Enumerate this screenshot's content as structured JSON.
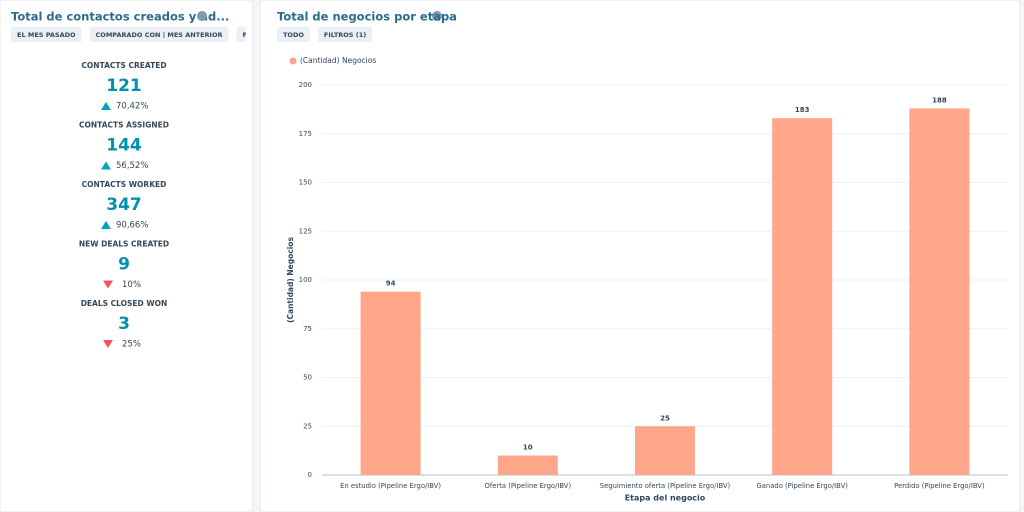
{
  "kpi_panel": {
    "title": "Total de contactos creados y ad...",
    "filters": [
      "EL MES PASADO",
      "COMPARADO CON | MES ANTERIOR",
      "FILT"
    ],
    "metrics": [
      {
        "label": "CONTACTS CREATED",
        "value": 121,
        "change": "70,42%",
        "direction": "up"
      },
      {
        "label": "CONTACTS ASSIGNED",
        "value": 144,
        "change": "56,52%",
        "direction": "up"
      },
      {
        "label": "CONTACTS WORKED",
        "value": 347,
        "change": "90,66%",
        "direction": "up"
      },
      {
        "label": "NEW DEALS CREATED",
        "value": 9,
        "change": "10%",
        "direction": "down"
      },
      {
        "label": "DEALS CLOSED WON",
        "value": 3,
        "change": "25%",
        "direction": "down"
      }
    ]
  },
  "chart_panel": {
    "filters": [
      "TODO",
      "FILTROS (1)"
    ]
  },
  "chart_data": {
    "type": "bar",
    "title": "Total de negocios por etapa",
    "categories": [
      "En estudio (Pipeline Ergo/IBV)",
      "Oferta (Pipeline Ergo/IBV)",
      "Seguimiento oferta (Pipeline Ergo/IBV)",
      "Ganado (Pipeline Ergo/IBV)",
      "Perdido (Pipeline Ergo/IBV)"
    ],
    "series": [
      {
        "name": "(Cantidad) Negocios",
        "color": "#ffa68a",
        "values": [
          94,
          10,
          25,
          183,
          188
        ]
      }
    ],
    "xlabel": "Etapa del negocio",
    "ylabel": "(Cantidad) Negocios",
    "ylim": [
      0,
      200
    ],
    "yticks": [
      0,
      25,
      50,
      75,
      100,
      125,
      150,
      175,
      200
    ],
    "grid": true
  }
}
